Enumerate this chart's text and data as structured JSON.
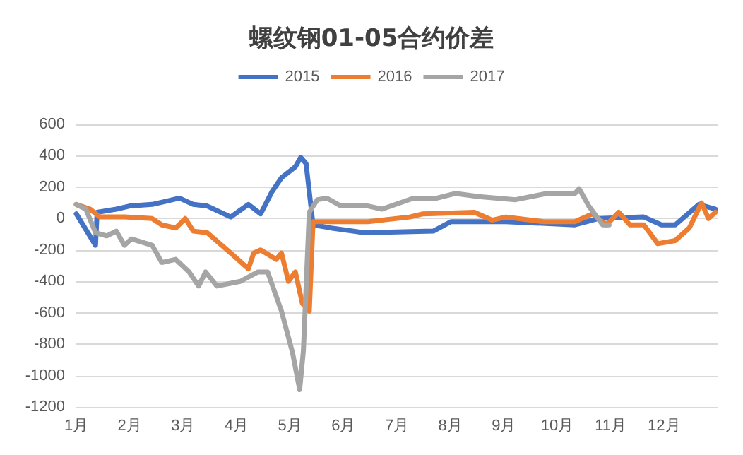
{
  "chart_data": {
    "type": "line",
    "title": "螺纹钢01-05合约价差",
    "legend": "top",
    "grid": "y",
    "marker": "none",
    "line_style": "solid",
    "xlim": [
      1,
      13
    ],
    "xticks": [
      {
        "value": 1,
        "label": "1月"
      },
      {
        "value": 2,
        "label": "2月"
      },
      {
        "value": 3,
        "label": "3月"
      },
      {
        "value": 4,
        "label": "4月"
      },
      {
        "value": 5,
        "label": "5月"
      },
      {
        "value": 6,
        "label": "6月"
      },
      {
        "value": 7,
        "label": "7月"
      },
      {
        "value": 8,
        "label": "8月"
      },
      {
        "value": 9,
        "label": "9月"
      },
      {
        "value": 10,
        "label": "10月"
      },
      {
        "value": 11,
        "label": "11月"
      },
      {
        "value": 12,
        "label": "12月"
      }
    ],
    "ylim": [
      -1200,
      600
    ],
    "yticks": [
      -1200,
      -1000,
      -800,
      -600,
      -400,
      -200,
      0,
      200,
      400,
      600
    ],
    "series": [
      {
        "name": "2015",
        "color": "#4472c4",
        "x": [
          1.0,
          1.36,
          1.39,
          1.75,
          2.0,
          2.42,
          2.68,
          2.93,
          3.19,
          3.45,
          3.89,
          4.22,
          4.45,
          4.66,
          4.84,
          5.1,
          5.2,
          5.3,
          5.43,
          5.77,
          6.39,
          6.46,
          7.68,
          8.01,
          9.04,
          10.33,
          10.77,
          11.62,
          11.95,
          12.21,
          12.65,
          12.96
        ],
        "values": [
          30,
          -170,
          40,
          60,
          80,
          90,
          110,
          130,
          90,
          80,
          10,
          90,
          30,
          170,
          260,
          330,
          390,
          350,
          -40,
          -60,
          -90,
          -90,
          -80,
          -20,
          -20,
          -40,
          0,
          10,
          -40,
          -40,
          90,
          60
        ]
      },
      {
        "name": "2016",
        "color": "#ed7d31",
        "x": [
          1.0,
          1.26,
          1.44,
          1.9,
          2.42,
          2.6,
          2.86,
          3.04,
          3.19,
          3.45,
          3.89,
          4.22,
          4.32,
          4.45,
          4.74,
          4.84,
          4.97,
          5.1,
          5.23,
          5.36,
          5.43,
          5.77,
          6.46,
          7.24,
          7.49,
          8.45,
          8.78,
          9.04,
          9.74,
          10.33,
          10.66,
          10.92,
          11.15,
          11.36,
          11.62,
          11.88,
          12.21,
          12.47,
          12.7,
          12.83,
          12.96
        ],
        "values": [
          90,
          60,
          10,
          10,
          0,
          -40,
          -60,
          0,
          -80,
          -90,
          -220,
          -320,
          -220,
          -200,
          -260,
          -220,
          -400,
          -340,
          -540,
          -590,
          -20,
          -20,
          -20,
          10,
          30,
          40,
          -10,
          10,
          -20,
          -20,
          30,
          -40,
          40,
          -40,
          -40,
          -160,
          -140,
          -60,
          100,
          0,
          40
        ]
      },
      {
        "name": "2017",
        "color": "#a5a5a5",
        "x": [
          1.0,
          1.18,
          1.36,
          1.57,
          1.75,
          1.9,
          2.03,
          2.42,
          2.6,
          2.86,
          3.11,
          3.29,
          3.42,
          3.63,
          4.07,
          4.4,
          4.58,
          4.84,
          5.05,
          5.18,
          5.25,
          5.36,
          5.51,
          5.69,
          5.95,
          6.46,
          6.72,
          7.31,
          7.75,
          8.09,
          8.53,
          9.22,
          9.81,
          10.33,
          10.41,
          10.59,
          10.85,
          10.97
        ],
        "values": [
          90,
          60,
          -90,
          -110,
          -80,
          -170,
          -130,
          -170,
          -280,
          -260,
          -340,
          -430,
          -340,
          -430,
          -400,
          -340,
          -340,
          -590,
          -860,
          -1090,
          -840,
          40,
          120,
          130,
          80,
          80,
          60,
          130,
          130,
          160,
          140,
          120,
          160,
          160,
          190,
          80,
          -40,
          -40
        ]
      }
    ]
  }
}
